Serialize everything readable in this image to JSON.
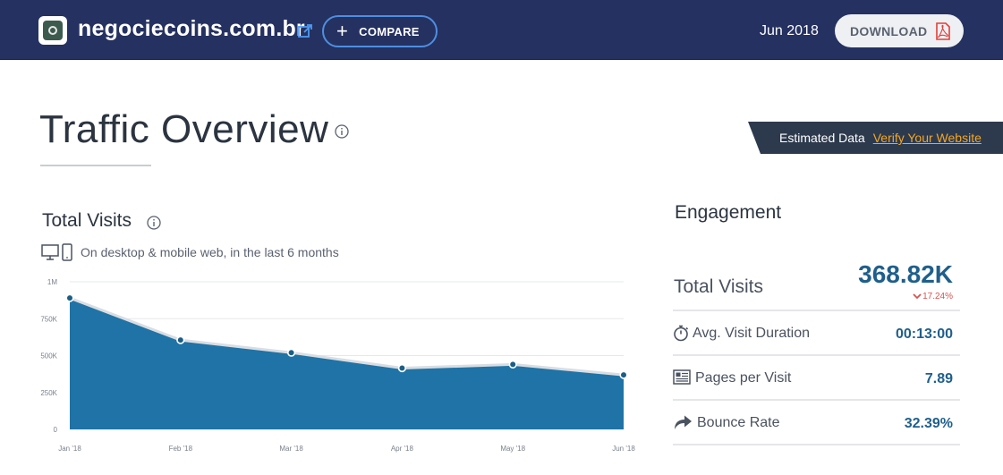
{
  "header": {
    "site_name": "negociecoins.com.br",
    "compare_label": "COMPARE",
    "date": "Jun 2018",
    "download_label": "DOWNLOAD"
  },
  "page": {
    "title": "Traffic Overview",
    "estimated_label": "Estimated Data",
    "verify_label": "Verify Your Website"
  },
  "total_visits_section": {
    "title": "Total Visits",
    "subtitle": "On desktop & mobile web, in the last 6 months"
  },
  "chart_data": {
    "type": "area",
    "categories": [
      "Jan '18",
      "Feb '18",
      "Mar '18",
      "Apr '18",
      "May '18",
      "Jun '18"
    ],
    "values": [
      890000,
      605000,
      520000,
      415000,
      440000,
      368820
    ],
    "y_ticks": [
      "0",
      "250K",
      "500K",
      "750K",
      "1M"
    ],
    "y_tick_values": [
      0,
      250000,
      500000,
      750000,
      1000000
    ],
    "ylim": [
      0,
      1000000
    ],
    "grid": true,
    "color": "#1f73a6"
  },
  "engagement": {
    "title": "Engagement",
    "total_visits_label": "Total Visits",
    "total_visits_value": "368.82K",
    "total_visits_change": "17.24%",
    "avg_duration_label": "Avg. Visit Duration",
    "avg_duration_value": "00:13:00",
    "pages_per_visit_label": "Pages per Visit",
    "pages_per_visit_value": "7.89",
    "bounce_rate_label": "Bounce Rate",
    "bounce_rate_value": "32.39%"
  },
  "colors": {
    "header_bg": "#253160",
    "accent_blue": "#1f5f8b",
    "area_fill": "#1f73a6",
    "verify_link": "#f5a623",
    "negative_change": "#d9534f"
  },
  "icons": {
    "site_logo": "site-logo",
    "external_link": "external-link-icon",
    "compare": "plus-icon",
    "download": "pdf-icon",
    "info": "info-icon",
    "desktop": "desktop-icon",
    "mobile": "mobile-icon",
    "duration": "stopwatch-icon",
    "pages": "pages-icon",
    "bounce": "bounce-arrow-icon",
    "decrease": "chevron-down-icon"
  }
}
